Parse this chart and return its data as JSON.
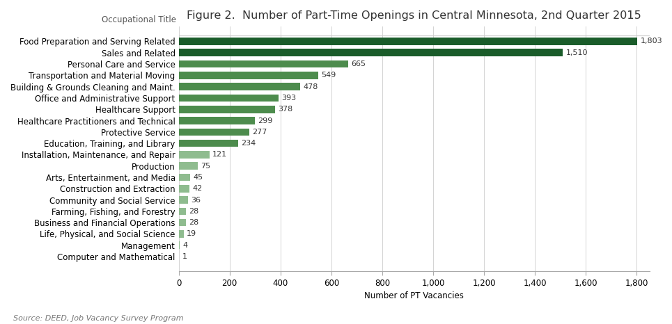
{
  "title": "Figure 2.  Number of Part-Time Openings in Central Minnesota, 2nd Quarter 2015",
  "categories": [
    "Food Preparation and Serving Related",
    "Sales and Related",
    "Personal Care and Service",
    "Transportation and Material Moving",
    "Building & Grounds Cleaning and Maint.",
    "Office and Administrative Support",
    "Healthcare Support",
    "Healthcare Practitioners and Technical",
    "Protective Service",
    "Education, Training, and Library",
    "Installation, Maintenance, and Repair",
    "Production",
    "Arts, Entertainment, and Media",
    "Construction and Extraction",
    "Community and Social Service",
    "Farming, Fishing, and Forestry",
    "Business and Financial Operations",
    "Life, Physical, and Social Science",
    "Management",
    "Computer and Mathematical"
  ],
  "values": [
    1803,
    1510,
    665,
    549,
    478,
    393,
    378,
    299,
    277,
    234,
    121,
    75,
    45,
    42,
    36,
    28,
    28,
    19,
    4,
    1
  ],
  "bar_colors": [
    "#1a5c2a",
    "#1a5c2a",
    "#4d8c4d",
    "#4d8c4d",
    "#4d8c4d",
    "#4d8c4d",
    "#4d8c4d",
    "#4d8c4d",
    "#4d8c4d",
    "#4d8c4d",
    "#8fbc8f",
    "#8fbc8f",
    "#8fbc8f",
    "#8fbc8f",
    "#8fbc8f",
    "#8fbc8f",
    "#8fbc8f",
    "#8fbc8f",
    "#8fbc8f",
    "#8fbc8f"
  ],
  "xlabel": "Number of PT Vacancies",
  "occ_title_label": "Occupational Title",
  "xlim": [
    0,
    1850
  ],
  "xticks": [
    0,
    200,
    400,
    600,
    800,
    1000,
    1200,
    1400,
    1600,
    1800
  ],
  "xtick_labels": [
    "0",
    "200",
    "400",
    "600",
    "800",
    "1,000",
    "1,200",
    "1,400",
    "1,600",
    "1,800"
  ],
  "source": "Source: DEED, Job Vacancy Survey Program",
  "background_color": "#ffffff",
  "title_fontsize": 11.5,
  "label_fontsize": 8.5,
  "value_fontsize": 8,
  "tick_fontsize": 8.5
}
